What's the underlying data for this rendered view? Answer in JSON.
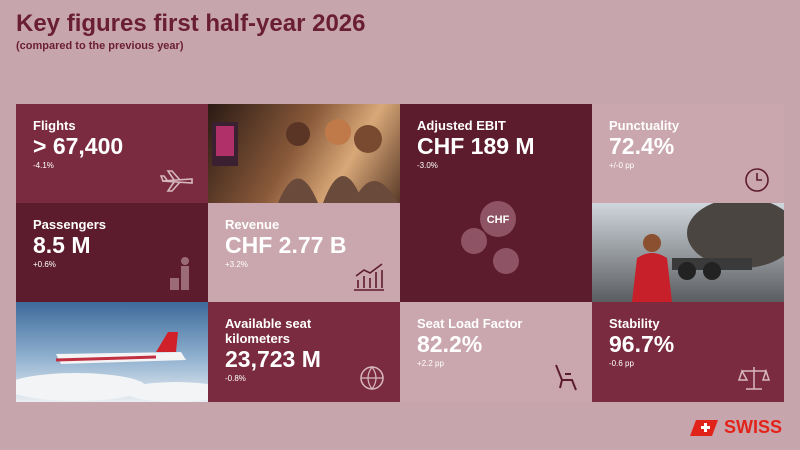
{
  "header": {
    "title": "Key figures first half-year 2026",
    "subtitle": "(compared to the previous year)"
  },
  "tiles": [
    {
      "label": "Flights",
      "value": "> 67,400",
      "change": "-4.1%"
    },
    {
      "label": "Adjusted EBIT",
      "value": "CHF 189 M",
      "change": "-3.0%"
    },
    {
      "label": "Punctuality",
      "value": "72.4%",
      "change": "+/-0 pp"
    },
    {
      "label": "Passengers",
      "value": "8.5 M",
      "change": "+0.6%"
    },
    {
      "label": "Revenue",
      "value": "CHF 2.77 B",
      "change": "+3.2%"
    },
    {
      "label": "Available seat kilometers",
      "value": "23,723 M",
      "change": "-0.8%"
    },
    {
      "label": "Seat Load Factor",
      "value": "82.2%",
      "change": "+2.2 pp"
    },
    {
      "label": "Stability",
      "value": "96.7%",
      "change": "-0.6 pp"
    }
  ],
  "ebit_icon": "CHF",
  "logo": "SWISS"
}
